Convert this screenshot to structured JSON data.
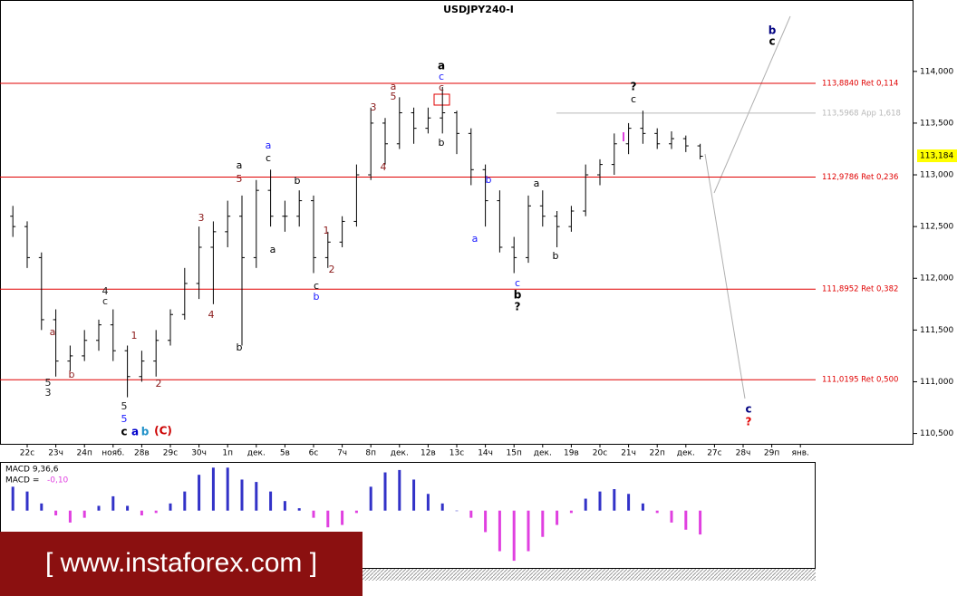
{
  "chart_data": {
    "type": "ohlc",
    "title": "USDJPY240-I",
    "categories": [
      null,
      "22с",
      null,
      "23ч",
      null,
      "24п",
      null,
      "нояб.",
      null,
      "28в",
      null,
      "29с",
      null,
      "30ч",
      null,
      "1п",
      null,
      "дек.",
      null,
      "5в",
      null,
      "6с",
      null,
      "7ч",
      null,
      "8п",
      null,
      "дек.",
      null,
      "12в",
      null,
      "13с",
      null,
      "14ч",
      null,
      "15п",
      null,
      "дек.",
      null,
      "19в",
      null,
      "20с",
      null,
      "21ч",
      null,
      "22п",
      null,
      "дек.",
      null,
      "27с",
      null,
      "28ч",
      null,
      "29п",
      null,
      "янв."
    ],
    "open": [
      112.6,
      112.5,
      112.2,
      111.6,
      111.2,
      111.25,
      111.4,
      111.55,
      111.3,
      111.05,
      111.2,
      111.4,
      111.65,
      111.95,
      112.3,
      112.45,
      112.6,
      112.2,
      112.85,
      112.6,
      112.6,
      112.75,
      112.2,
      112.35,
      112.55,
      113.0,
      113.5,
      113.3,
      113.6,
      113.45,
      113.55,
      113.6,
      113.4,
      113.05,
      112.75,
      112.3,
      112.2,
      112.7,
      112.6,
      112.5,
      112.65,
      113.0,
      113.1,
      113.3,
      113.45,
      113.4,
      113.3,
      113.35,
      113.28,
      null,
      null,
      null,
      null,
      null,
      null,
      null
    ],
    "high": [
      112.7,
      112.55,
      112.25,
      111.7,
      111.35,
      111.5,
      111.6,
      111.7,
      111.35,
      111.3,
      111.5,
      111.7,
      112.1,
      112.5,
      112.55,
      112.75,
      112.8,
      112.95,
      113.05,
      112.75,
      112.85,
      112.8,
      112.45,
      112.6,
      113.1,
      113.65,
      113.55,
      113.75,
      113.65,
      113.65,
      113.85,
      113.62,
      113.45,
      113.1,
      112.85,
      112.4,
      112.8,
      112.85,
      112.65,
      112.7,
      113.1,
      113.15,
      113.4,
      113.5,
      113.62,
      113.45,
      113.42,
      113.38,
      113.3,
      null,
      null,
      null,
      null,
      null,
      null,
      null
    ],
    "low": [
      112.4,
      112.1,
      111.5,
      111.05,
      111.1,
      111.2,
      111.3,
      111.2,
      110.85,
      111.0,
      111.05,
      111.35,
      111.6,
      111.8,
      111.75,
      112.3,
      111.35,
      112.1,
      112.5,
      112.45,
      112.5,
      112.05,
      112.1,
      112.3,
      112.5,
      112.95,
      113.1,
      113.25,
      113.3,
      113.4,
      113.4,
      113.2,
      112.9,
      112.5,
      112.25,
      112.05,
      112.15,
      112.5,
      112.3,
      112.45,
      112.6,
      112.9,
      113.0,
      113.2,
      113.3,
      113.25,
      113.25,
      113.22,
      113.15,
      null,
      null,
      null,
      null,
      null,
      null,
      null
    ],
    "close": [
      112.5,
      112.2,
      111.6,
      111.2,
      111.25,
      111.4,
      111.55,
      111.3,
      111.05,
      111.2,
      111.4,
      111.65,
      111.95,
      112.3,
      112.45,
      112.6,
      112.2,
      112.85,
      112.6,
      112.6,
      112.75,
      112.2,
      112.35,
      112.55,
      113.0,
      113.5,
      113.3,
      113.6,
      113.45,
      113.55,
      113.6,
      113.4,
      113.05,
      112.75,
      112.3,
      112.2,
      112.7,
      112.6,
      112.5,
      112.65,
      113.0,
      113.1,
      113.3,
      113.45,
      113.4,
      113.3,
      113.35,
      113.28,
      113.18,
      null,
      null,
      null,
      null,
      null,
      null,
      null
    ],
    "color": "#000000",
    "ylim": [
      110.4,
      114.69
    ],
    "yticks": [
      {
        "value": 110.5,
        "label": "110,500"
      },
      {
        "value": 111,
        "label": "111,000"
      },
      {
        "value": 111.5,
        "label": "111,500"
      },
      {
        "value": 112,
        "label": "112,000"
      },
      {
        "value": 112.5,
        "label": "112,500"
      },
      {
        "value": 113,
        "label": "113,000"
      },
      {
        "value": 113.5,
        "label": "113,500"
      },
      {
        "value": 114,
        "label": "114,000"
      }
    ],
    "last_price": {
      "value": 113.184,
      "label": "113,184"
    },
    "levels": [
      {
        "value": 113.884,
        "label": "113,8840 Ret 0,114",
        "color": "#e00000"
      },
      {
        "value": 113.5968,
        "label": "113,5968 App 1,618",
        "color": "#b8b8b8"
      },
      {
        "value": 112.9786,
        "label": "112,9786 Ret 0,236",
        "color": "#e00000"
      },
      {
        "value": 111.8952,
        "label": "111,8952 Ret 0,382",
        "color": "#e00000"
      },
      {
        "value": 111.0195,
        "label": "111,0195 Ret 0,500",
        "color": "#e00000"
      }
    ],
    "annotations": [
      {
        "text": "a",
        "color": "#8b1a1a"
      },
      {
        "text": "5",
        "color": "#222222"
      },
      {
        "text": "3",
        "color": "#222222"
      },
      {
        "text": "b",
        "color": "#8b1a1a"
      },
      {
        "text": "4",
        "color": "#222222"
      },
      {
        "text": "c",
        "color": "#222222"
      },
      {
        "text": "5",
        "color": "#222222"
      },
      {
        "text": "5",
        "color": "#1a1aff"
      },
      {
        "text": "c",
        "color": "#000000"
      },
      {
        "text": "a",
        "color": "#0000cc"
      },
      {
        "text": "b",
        "color": "#1e90c8"
      },
      {
        "text": "(C)",
        "color": "#cc0000"
      },
      {
        "text": "1",
        "color": "#8b1a1a"
      },
      {
        "text": "2",
        "color": "#8b1a1a"
      },
      {
        "text": "3",
        "color": "#8b1a1a"
      },
      {
        "text": "4",
        "color": "#8b1a1a"
      },
      {
        "text": "b",
        "color": "#000000"
      },
      {
        "text": "a",
        "color": "#000000"
      },
      {
        "text": "5",
        "color": "#8b1a1a"
      },
      {
        "text": "a",
        "color": "#1a1aff"
      },
      {
        "text": "c",
        "color": "#000000"
      },
      {
        "text": "a",
        "color": "#000000"
      },
      {
        "text": "b",
        "color": "#000000"
      },
      {
        "text": "c",
        "color": "#000000"
      },
      {
        "text": "b",
        "color": "#1a1aff"
      },
      {
        "text": "1",
        "color": "#8b1a1a"
      },
      {
        "text": "2",
        "color": "#8b1a1a"
      },
      {
        "text": "3",
        "color": "#8b1a1a"
      },
      {
        "text": "4",
        "color": "#8b1a1a"
      },
      {
        "text": "a",
        "color": "#8b1a1a"
      },
      {
        "text": "5",
        "color": "#8b1a1a"
      },
      {
        "text": "a",
        "color": "#000000"
      },
      {
        "text": "c",
        "color": "#1a1aff"
      },
      {
        "text": "c",
        "color": "#8b1a1a"
      },
      {
        "text": "b",
        "color": "#000000"
      },
      {
        "text": "b",
        "color": "#1a1aff"
      },
      {
        "text": "a",
        "color": "#1a1aff"
      },
      {
        "text": "c",
        "color": "#1a1aff"
      },
      {
        "text": "b",
        "color": "#000000"
      },
      {
        "text": "?",
        "color": "#000000"
      },
      {
        "text": "a",
        "color": "#000000"
      },
      {
        "text": "b",
        "color": "#000000"
      },
      {
        "text": "?",
        "color": "#000000"
      },
      {
        "text": "c",
        "color": "#000000"
      },
      {
        "text": "b",
        "color": "#000080"
      },
      {
        "text": "c",
        "color": "#000000"
      },
      {
        "text": "c",
        "color": "#000080"
      },
      {
        "text": "?",
        "color": "#e00000"
      }
    ],
    "macd": {
      "title": "MACD 9,36,6",
      "current_label": "MACD =",
      "current": {
        "value": -0.1,
        "label": "-0,10"
      },
      "values": [
        0.1,
        0.08,
        0.03,
        -0.02,
        -0.05,
        -0.03,
        0.02,
        0.06,
        0.02,
        -0.02,
        -0.01,
        0.03,
        0.08,
        0.15,
        0.18,
        0.18,
        0.13,
        0.12,
        0.08,
        0.04,
        0.01,
        -0.03,
        -0.07,
        -0.06,
        -0.01,
        0.1,
        0.16,
        0.17,
        0.13,
        0.07,
        0.03,
        0.0,
        -0.03,
        -0.09,
        -0.17,
        -0.21,
        -0.17,
        -0.11,
        -0.06,
        -0.01,
        0.05,
        0.08,
        0.09,
        0.07,
        0.03,
        -0.01,
        -0.05,
        -0.08,
        -0.1,
        null,
        null,
        null,
        null,
        null,
        null,
        null
      ],
      "positive_color": "#3232c8",
      "negative_color": "#e040e0",
      "ylim": [
        -0.24,
        0.2
      ]
    },
    "watermark": "[  www.instaforex.com ]"
  }
}
